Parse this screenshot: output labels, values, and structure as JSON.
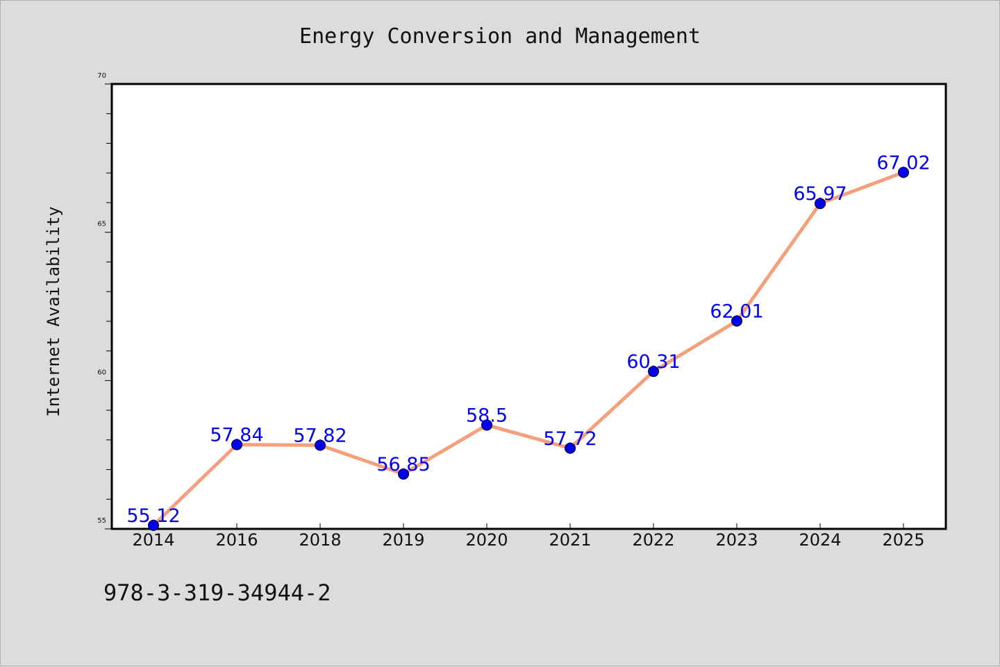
{
  "header": {
    "title": "Energy Conversion and Management"
  },
  "footer": {
    "identifier": "978-3-319-34944-2"
  },
  "chart_data": {
    "type": "line",
    "title": "Energy Conversion and Management",
    "xlabel": "",
    "ylabel": "Internet Availability",
    "categories": [
      "2014",
      "2016",
      "2018",
      "2019",
      "2020",
      "2021",
      "2022",
      "2023",
      "2024",
      "2025"
    ],
    "values": [
      55.12,
      57.84,
      57.82,
      56.85,
      58.5,
      57.72,
      60.31,
      62.01,
      65.97,
      67.02
    ],
    "data_labels": [
      "55.12",
      "57.84",
      "57.82",
      "56.85",
      "58.5",
      "57.72",
      "60.31",
      "62.01",
      "65.97",
      "67.02"
    ],
    "ylim": [
      55,
      70
    ],
    "yticks": [
      "55",
      "60",
      "65",
      "70"
    ],
    "grid": false,
    "legend": "none",
    "colors": {
      "line": "#f4a07c",
      "marker": "#0000ee",
      "label": "#0000ee"
    }
  }
}
